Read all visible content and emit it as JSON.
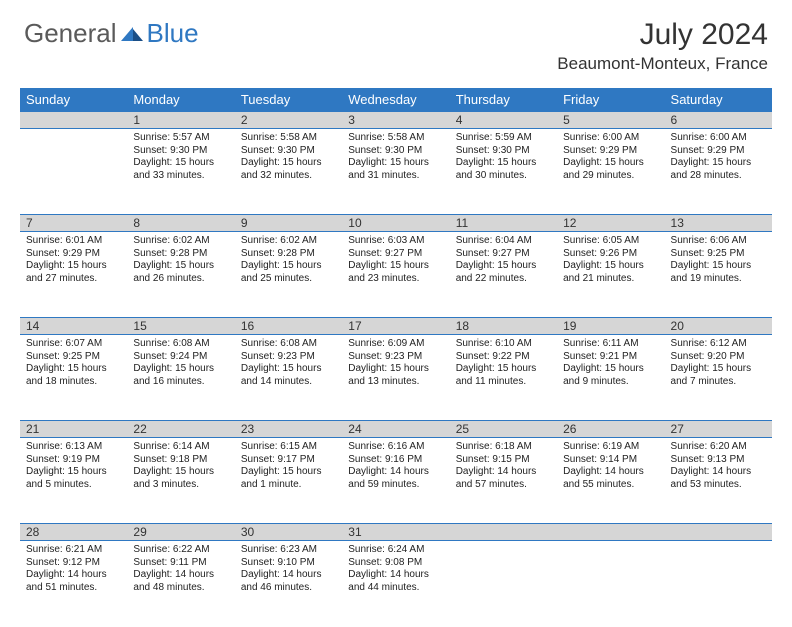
{
  "brand": {
    "word1": "General",
    "word2": "Blue"
  },
  "title": "July 2024",
  "location": "Beaumont-Monteux, France",
  "colors": {
    "header_bg": "#2f78c2",
    "header_text": "#ffffff",
    "daynum_bg": "#d6d6d6",
    "row_border": "#2f78c2",
    "body_text": "#222222",
    "logo_gray": "#5a5a5a",
    "logo_blue": "#2f78c2",
    "page_bg": "#ffffff"
  },
  "typography": {
    "title_fontsize": 30,
    "location_fontsize": 17,
    "weekday_fontsize": 13,
    "daynum_fontsize": 12,
    "cell_fontsize": 10
  },
  "weekdays": [
    "Sunday",
    "Monday",
    "Tuesday",
    "Wednesday",
    "Thursday",
    "Friday",
    "Saturday"
  ],
  "weeks": [
    {
      "nums": [
        "",
        "1",
        "2",
        "3",
        "4",
        "5",
        "6"
      ],
      "cells": [
        null,
        {
          "sunrise": "Sunrise: 5:57 AM",
          "sunset": "Sunset: 9:30 PM",
          "day1": "Daylight: 15 hours",
          "day2": "and 33 minutes."
        },
        {
          "sunrise": "Sunrise: 5:58 AM",
          "sunset": "Sunset: 9:30 PM",
          "day1": "Daylight: 15 hours",
          "day2": "and 32 minutes."
        },
        {
          "sunrise": "Sunrise: 5:58 AM",
          "sunset": "Sunset: 9:30 PM",
          "day1": "Daylight: 15 hours",
          "day2": "and 31 minutes."
        },
        {
          "sunrise": "Sunrise: 5:59 AM",
          "sunset": "Sunset: 9:30 PM",
          "day1": "Daylight: 15 hours",
          "day2": "and 30 minutes."
        },
        {
          "sunrise": "Sunrise: 6:00 AM",
          "sunset": "Sunset: 9:29 PM",
          "day1": "Daylight: 15 hours",
          "day2": "and 29 minutes."
        },
        {
          "sunrise": "Sunrise: 6:00 AM",
          "sunset": "Sunset: 9:29 PM",
          "day1": "Daylight: 15 hours",
          "day2": "and 28 minutes."
        }
      ]
    },
    {
      "nums": [
        "7",
        "8",
        "9",
        "10",
        "11",
        "12",
        "13"
      ],
      "cells": [
        {
          "sunrise": "Sunrise: 6:01 AM",
          "sunset": "Sunset: 9:29 PM",
          "day1": "Daylight: 15 hours",
          "day2": "and 27 minutes."
        },
        {
          "sunrise": "Sunrise: 6:02 AM",
          "sunset": "Sunset: 9:28 PM",
          "day1": "Daylight: 15 hours",
          "day2": "and 26 minutes."
        },
        {
          "sunrise": "Sunrise: 6:02 AM",
          "sunset": "Sunset: 9:28 PM",
          "day1": "Daylight: 15 hours",
          "day2": "and 25 minutes."
        },
        {
          "sunrise": "Sunrise: 6:03 AM",
          "sunset": "Sunset: 9:27 PM",
          "day1": "Daylight: 15 hours",
          "day2": "and 23 minutes."
        },
        {
          "sunrise": "Sunrise: 6:04 AM",
          "sunset": "Sunset: 9:27 PM",
          "day1": "Daylight: 15 hours",
          "day2": "and 22 minutes."
        },
        {
          "sunrise": "Sunrise: 6:05 AM",
          "sunset": "Sunset: 9:26 PM",
          "day1": "Daylight: 15 hours",
          "day2": "and 21 minutes."
        },
        {
          "sunrise": "Sunrise: 6:06 AM",
          "sunset": "Sunset: 9:25 PM",
          "day1": "Daylight: 15 hours",
          "day2": "and 19 minutes."
        }
      ]
    },
    {
      "nums": [
        "14",
        "15",
        "16",
        "17",
        "18",
        "19",
        "20"
      ],
      "cells": [
        {
          "sunrise": "Sunrise: 6:07 AM",
          "sunset": "Sunset: 9:25 PM",
          "day1": "Daylight: 15 hours",
          "day2": "and 18 minutes."
        },
        {
          "sunrise": "Sunrise: 6:08 AM",
          "sunset": "Sunset: 9:24 PM",
          "day1": "Daylight: 15 hours",
          "day2": "and 16 minutes."
        },
        {
          "sunrise": "Sunrise: 6:08 AM",
          "sunset": "Sunset: 9:23 PM",
          "day1": "Daylight: 15 hours",
          "day2": "and 14 minutes."
        },
        {
          "sunrise": "Sunrise: 6:09 AM",
          "sunset": "Sunset: 9:23 PM",
          "day1": "Daylight: 15 hours",
          "day2": "and 13 minutes."
        },
        {
          "sunrise": "Sunrise: 6:10 AM",
          "sunset": "Sunset: 9:22 PM",
          "day1": "Daylight: 15 hours",
          "day2": "and 11 minutes."
        },
        {
          "sunrise": "Sunrise: 6:11 AM",
          "sunset": "Sunset: 9:21 PM",
          "day1": "Daylight: 15 hours",
          "day2": "and 9 minutes."
        },
        {
          "sunrise": "Sunrise: 6:12 AM",
          "sunset": "Sunset: 9:20 PM",
          "day1": "Daylight: 15 hours",
          "day2": "and 7 minutes."
        }
      ]
    },
    {
      "nums": [
        "21",
        "22",
        "23",
        "24",
        "25",
        "26",
        "27"
      ],
      "cells": [
        {
          "sunrise": "Sunrise: 6:13 AM",
          "sunset": "Sunset: 9:19 PM",
          "day1": "Daylight: 15 hours",
          "day2": "and 5 minutes."
        },
        {
          "sunrise": "Sunrise: 6:14 AM",
          "sunset": "Sunset: 9:18 PM",
          "day1": "Daylight: 15 hours",
          "day2": "and 3 minutes."
        },
        {
          "sunrise": "Sunrise: 6:15 AM",
          "sunset": "Sunset: 9:17 PM",
          "day1": "Daylight: 15 hours",
          "day2": "and 1 minute."
        },
        {
          "sunrise": "Sunrise: 6:16 AM",
          "sunset": "Sunset: 9:16 PM",
          "day1": "Daylight: 14 hours",
          "day2": "and 59 minutes."
        },
        {
          "sunrise": "Sunrise: 6:18 AM",
          "sunset": "Sunset: 9:15 PM",
          "day1": "Daylight: 14 hours",
          "day2": "and 57 minutes."
        },
        {
          "sunrise": "Sunrise: 6:19 AM",
          "sunset": "Sunset: 9:14 PM",
          "day1": "Daylight: 14 hours",
          "day2": "and 55 minutes."
        },
        {
          "sunrise": "Sunrise: 6:20 AM",
          "sunset": "Sunset: 9:13 PM",
          "day1": "Daylight: 14 hours",
          "day2": "and 53 minutes."
        }
      ]
    },
    {
      "nums": [
        "28",
        "29",
        "30",
        "31",
        "",
        "",
        ""
      ],
      "cells": [
        {
          "sunrise": "Sunrise: 6:21 AM",
          "sunset": "Sunset: 9:12 PM",
          "day1": "Daylight: 14 hours",
          "day2": "and 51 minutes."
        },
        {
          "sunrise": "Sunrise: 6:22 AM",
          "sunset": "Sunset: 9:11 PM",
          "day1": "Daylight: 14 hours",
          "day2": "and 48 minutes."
        },
        {
          "sunrise": "Sunrise: 6:23 AM",
          "sunset": "Sunset: 9:10 PM",
          "day1": "Daylight: 14 hours",
          "day2": "and 46 minutes."
        },
        {
          "sunrise": "Sunrise: 6:24 AM",
          "sunset": "Sunset: 9:08 PM",
          "day1": "Daylight: 14 hours",
          "day2": "and 44 minutes."
        },
        null,
        null,
        null
      ]
    }
  ]
}
